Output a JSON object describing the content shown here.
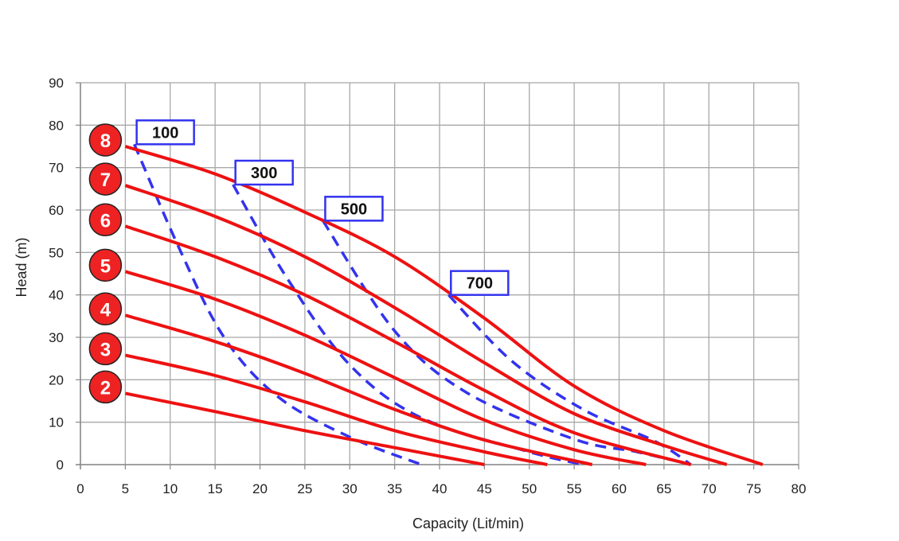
{
  "chart_data": {
    "type": "line",
    "xlabel": "Capacity (Lit/min)",
    "ylabel": "Head (m)",
    "xlim": [
      0,
      80
    ],
    "ylim": [
      0,
      90
    ],
    "xticks": [
      0,
      5,
      10,
      15,
      20,
      25,
      30,
      35,
      40,
      45,
      50,
      55,
      60,
      65,
      70,
      75,
      80
    ],
    "yticks": [
      0,
      10,
      20,
      30,
      40,
      50,
      60,
      70,
      80,
      90
    ],
    "grid": true,
    "colors": {
      "pressure_curve": "#ee1111",
      "flow_curve": "#3333ee",
      "label_circle": "#ee2222"
    },
    "pressure_curves": [
      {
        "label": "2",
        "points": [
          [
            5,
            16.8
          ],
          [
            15,
            12.5
          ],
          [
            25,
            8
          ],
          [
            35,
            4
          ],
          [
            45,
            0
          ]
        ]
      },
      {
        "label": "3",
        "points": [
          [
            5,
            25.8
          ],
          [
            15,
            21
          ],
          [
            25,
            14.8
          ],
          [
            35,
            8
          ],
          [
            45,
            3
          ],
          [
            52,
            0
          ]
        ]
      },
      {
        "label": "4",
        "points": [
          [
            5,
            35.2
          ],
          [
            15,
            29
          ],
          [
            25,
            21.5
          ],
          [
            35,
            13
          ],
          [
            45,
            5.8
          ],
          [
            57,
            0
          ]
        ]
      },
      {
        "label": "5",
        "points": [
          [
            5,
            45.5
          ],
          [
            15,
            39
          ],
          [
            25,
            30.5
          ],
          [
            35,
            20.5
          ],
          [
            45,
            10.5
          ],
          [
            55,
            3.5
          ],
          [
            63,
            0
          ]
        ]
      },
      {
        "label": "6",
        "points": [
          [
            5,
            56.2
          ],
          [
            15,
            49
          ],
          [
            25,
            40
          ],
          [
            35,
            29
          ],
          [
            45,
            17.5
          ],
          [
            55,
            7.5
          ],
          [
            68,
            0
          ]
        ]
      },
      {
        "label": "7",
        "points": [
          [
            5,
            65.8
          ],
          [
            15,
            58.5
          ],
          [
            25,
            49
          ],
          [
            35,
            37
          ],
          [
            45,
            24
          ],
          [
            55,
            12
          ],
          [
            65,
            4.5
          ],
          [
            72,
            0
          ]
        ]
      },
      {
        "label": "8",
        "points": [
          [
            5,
            75
          ],
          [
            15,
            68.5
          ],
          [
            25,
            59.5
          ],
          [
            35,
            49
          ],
          [
            45,
            34.5
          ],
          [
            55,
            18.5
          ],
          [
            65,
            8
          ],
          [
            76,
            0
          ]
        ]
      }
    ],
    "flow_curves": [
      {
        "label": "100",
        "points": [
          [
            6,
            75.5
          ],
          [
            11,
            51
          ],
          [
            16,
            30
          ],
          [
            22,
            16
          ],
          [
            30,
            6.5
          ],
          [
            38,
            0
          ]
        ]
      },
      {
        "label": "300",
        "points": [
          [
            17,
            66
          ],
          [
            23,
            44
          ],
          [
            30,
            23.5
          ],
          [
            38,
            11
          ],
          [
            50,
            3
          ],
          [
            56,
            0
          ]
        ]
      },
      {
        "label": "500",
        "points": [
          [
            27,
            57.5
          ],
          [
            35,
            31.5
          ],
          [
            43,
            17
          ],
          [
            55,
            6
          ],
          [
            62,
            3
          ],
          [
            68,
            0
          ]
        ]
      },
      {
        "label": "700",
        "points": [
          [
            41,
            40
          ],
          [
            48,
            24.5
          ],
          [
            56,
            13
          ],
          [
            64,
            5.5
          ],
          [
            68,
            0
          ]
        ]
      }
    ]
  }
}
